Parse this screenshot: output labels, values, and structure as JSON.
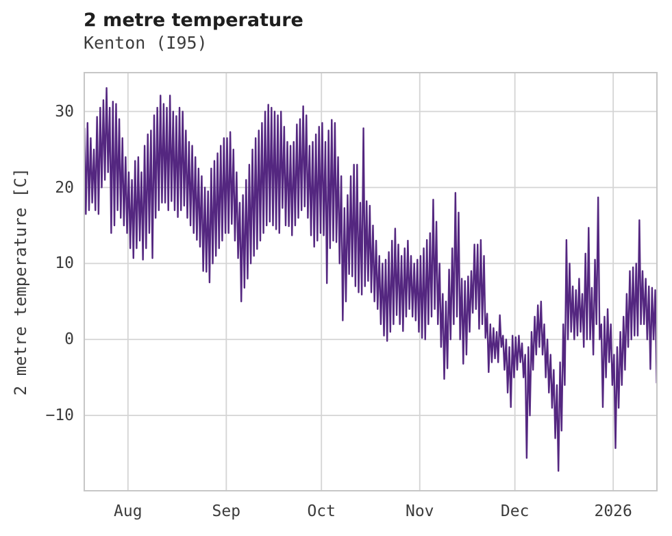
{
  "chart_data": {
    "type": "line",
    "title": "2 metre temperature",
    "subtitle": "Kenton (I95)",
    "ylabel": "2 metre temperature [C]",
    "xlabel": "",
    "grid": true,
    "legend_position": "none",
    "background_color": "#ffffff",
    "line_color": "#542780",
    "grid_color": "#d4d4d4",
    "spine_color": "#c6c6c6",
    "text_color": "#3c3c3c",
    "ylim": [
      -20,
      35.2
    ],
    "y_ticks": [
      {
        "label": "30",
        "value": 30
      },
      {
        "label": "20",
        "value": 20
      },
      {
        "label": "10",
        "value": 10
      },
      {
        "label": "0",
        "value": 0
      },
      {
        "label": "−10",
        "value": -10
      }
    ],
    "x_range_days": 181,
    "x_start_date": "2025-07-18",
    "x_ticks": [
      {
        "label": "Aug",
        "day_index": 14
      },
      {
        "label": "Sep",
        "day_index": 45
      },
      {
        "label": "Oct",
        "day_index": 75
      },
      {
        "label": "Nov",
        "day_index": 106
      },
      {
        "label": "Dec",
        "day_index": 136
      },
      {
        "label": "2026",
        "day_index": 167
      }
    ],
    "series": [
      {
        "name": "2 metre temperature",
        "units": "C",
        "sampling": "estimated daily min/max envelope, one pair per day from 2025-07-18 to 2026-01-14",
        "min": [
          16.5,
          17,
          18,
          17,
          16.5,
          20,
          21,
          22,
          14,
          15,
          17,
          16,
          15,
          14,
          12,
          10.7,
          12,
          13,
          10.5,
          12,
          14,
          10.7,
          16,
          17,
          18,
          18,
          17,
          18.2,
          17,
          16.1,
          17,
          17.6,
          16,
          15,
          14,
          13.1,
          12.2,
          9,
          8.9,
          7.5,
          10,
          11,
          12,
          13,
          14,
          14,
          15.2,
          13,
          10.7,
          5,
          6.8,
          8,
          10,
          11,
          11.9,
          13,
          14,
          15,
          15.5,
          15,
          14.5,
          14,
          17.3,
          15,
          14.9,
          13.7,
          15,
          16,
          17,
          17.5,
          16,
          13.7,
          12.2,
          13,
          14,
          13.7,
          7.4,
          12,
          13,
          12.8,
          10,
          2.5,
          5,
          8.6,
          8.3,
          7,
          6.2,
          5.9,
          7,
          7.7,
          6.2,
          5,
          4,
          2,
          0.5,
          -0.2,
          1,
          2,
          3.2,
          2,
          1.1,
          3,
          4,
          3,
          2.5,
          1,
          0.2,
          0,
          2,
          3,
          4,
          2,
          -1,
          -5.2,
          -3.8,
          0,
          2,
          3,
          0,
          -3.2,
          -2,
          1,
          3.5,
          4,
          1.4,
          2,
          0.2,
          -4.3,
          -3,
          -2.5,
          -3,
          -1,
          -4,
          -7,
          -8.9,
          -5,
          -4,
          -3,
          -5,
          -15.6,
          -10,
          -4,
          -2,
          -1,
          -2,
          -5,
          -7,
          -9,
          -13,
          -17.3,
          -12,
          -6,
          0,
          1,
          0,
          0.5,
          1,
          -1,
          0,
          0,
          -2,
          2,
          0,
          -8.9,
          -5,
          -3,
          -6,
          -14.3,
          -9,
          -6,
          -4,
          -1,
          0,
          0.5,
          0.5,
          2,
          2,
          0,
          -3.9,
          0,
          -5.7
        ],
        "max": [
          27.8,
          28.5,
          26.5,
          25,
          29.3,
          30.5,
          31.5,
          33.1,
          30.5,
          31.3,
          31,
          29,
          26.5,
          24,
          22,
          21,
          23.5,
          24,
          22,
          25.5,
          27,
          27.5,
          29.5,
          30.5,
          32.1,
          31,
          30.5,
          32.1,
          30,
          29.4,
          30.5,
          30,
          27.5,
          26,
          25.5,
          24,
          22.5,
          21.5,
          20,
          19.5,
          22.5,
          23.5,
          24.5,
          25.5,
          26.5,
          26.5,
          27.3,
          25,
          22,
          18,
          19,
          21,
          23,
          25,
          26.5,
          27.5,
          28.5,
          30,
          30.9,
          30.5,
          30,
          29.5,
          30,
          28,
          26,
          25.5,
          26,
          28.3,
          29,
          30.7,
          29.5,
          25.5,
          26,
          27,
          28,
          28.5,
          26,
          27.5,
          28.9,
          28.5,
          24,
          21.5,
          17.3,
          19,
          21.5,
          23,
          23,
          18,
          27.8,
          18.2,
          17.6,
          15,
          13,
          11,
          10,
          10.5,
          11.5,
          13,
          14.6,
          12.5,
          11,
          12,
          13,
          11,
          10,
          10.5,
          11,
          12,
          13.1,
          14,
          18.4,
          15.5,
          10,
          6,
          5,
          9.2,
          12,
          19.3,
          16.7,
          8,
          7.7,
          8.3,
          9,
          12.5,
          12.5,
          13.1,
          11,
          3.4,
          2,
          1.5,
          1,
          3.2,
          0.5,
          0,
          -1,
          0.5,
          0.3,
          0.5,
          -0.5,
          -2,
          -1,
          1,
          3,
          4.5,
          5,
          2,
          0,
          -2,
          -4,
          -6,
          -3,
          2,
          13.1,
          10,
          7,
          6.5,
          8,
          6,
          11.3,
          14.7,
          6.8,
          10.5,
          18.7,
          2,
          3,
          4,
          2,
          -2,
          -1,
          1,
          3,
          6,
          9,
          9.5,
          10,
          15.7,
          9,
          8,
          7,
          6.8,
          6.5
        ]
      }
    ]
  }
}
